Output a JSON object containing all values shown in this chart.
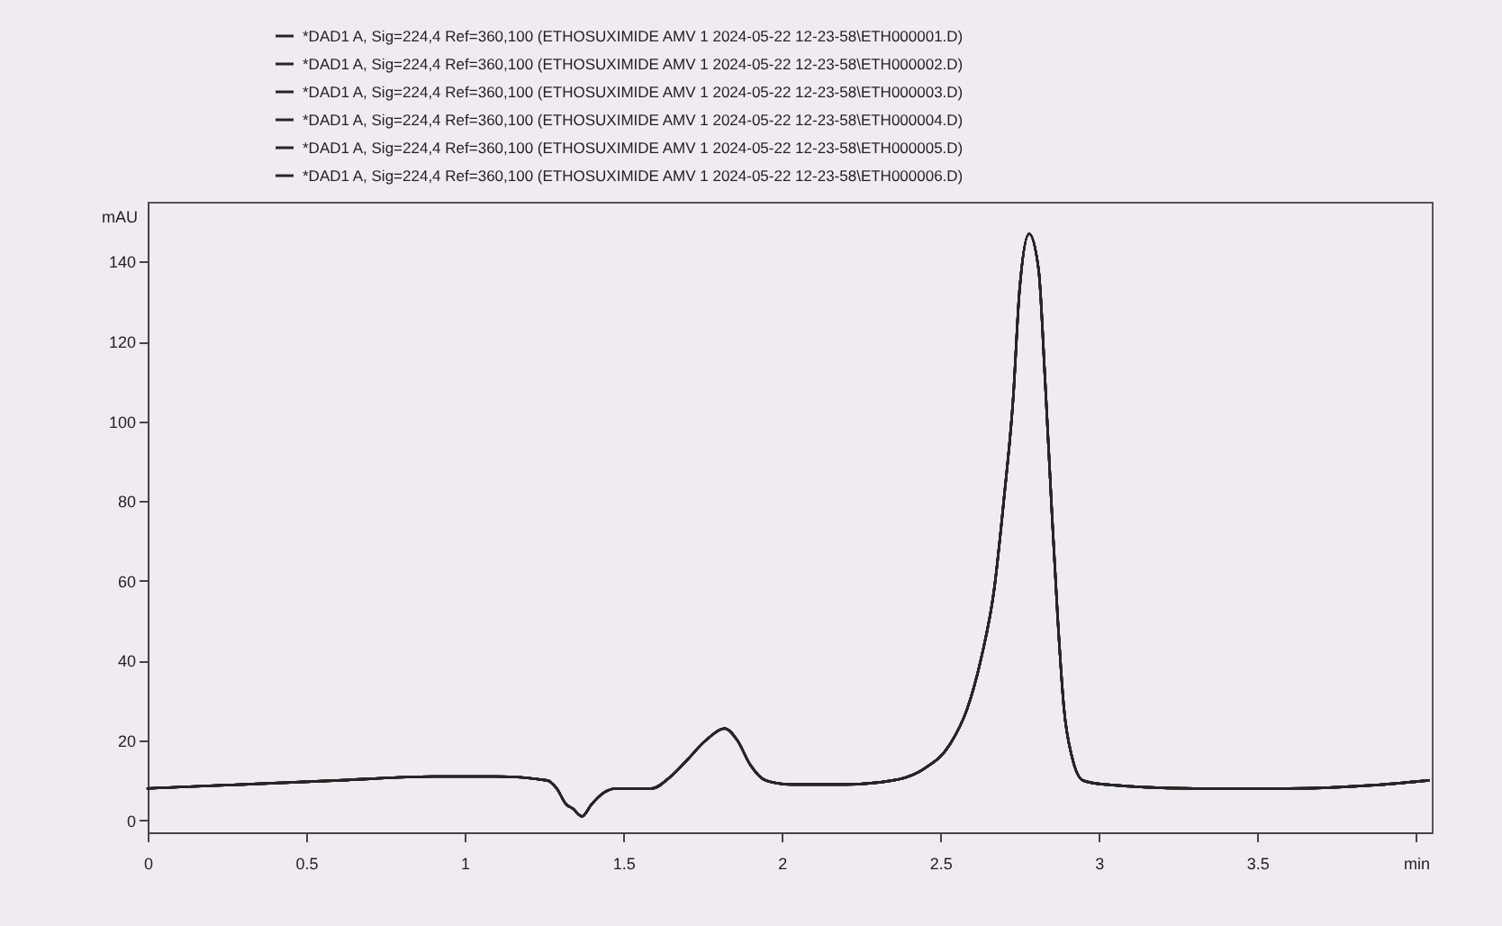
{
  "chart_data": {
    "type": "line",
    "ylabel": "mAU",
    "x": [
      0,
      0.3,
      0.6,
      0.9,
      1.1,
      1.26,
      1.29,
      1.32,
      1.34,
      1.37,
      1.4,
      1.44,
      1.48,
      1.59,
      1.65,
      1.7,
      1.76,
      1.82,
      1.86,
      1.9,
      1.95,
      2.03,
      2.2,
      2.35,
      2.45,
      2.53,
      2.585,
      2.63,
      2.67,
      2.7,
      2.73,
      2.75,
      2.78,
      2.81,
      2.83,
      2.85,
      2.87,
      2.89,
      2.915,
      2.95,
      3.02,
      3.3,
      3.6,
      3.9,
      4.04
    ],
    "series": [
      {
        "name": "*DAD1 A, Sig=224,4 Ref=360,100 (ETHOSUXIMIDE AMV 1 2024-05-22 12-23-58\\ETH000001.D)",
        "color": "#262626",
        "values": [
          8,
          9,
          10,
          11,
          11,
          10,
          8,
          4,
          3,
          1,
          4,
          7,
          8,
          8,
          11,
          15,
          20,
          23,
          20,
          14,
          10,
          9,
          9,
          10,
          13,
          19,
          28,
          41,
          58,
          80,
          106,
          133,
          147,
          138,
          111,
          80,
          51,
          28,
          16,
          10,
          9,
          8,
          8,
          9,
          10
        ]
      },
      {
        "name": "*DAD1 A, Sig=224,4 Ref=360,100 (ETHOSUXIMIDE AMV 1 2024-05-22 12-23-58\\ETH000002.D)",
        "color": "#262626",
        "values": [
          8,
          9,
          10,
          11,
          11,
          10,
          8,
          4,
          3,
          1,
          4,
          7,
          8,
          8,
          11,
          15,
          20,
          23,
          20,
          14,
          10,
          9,
          9,
          10,
          13,
          19,
          28,
          41,
          58,
          80,
          106,
          133,
          147,
          138,
          111,
          80,
          51,
          28,
          16,
          10,
          9,
          8,
          8,
          9,
          10
        ]
      },
      {
        "name": "*DAD1 A, Sig=224,4 Ref=360,100 (ETHOSUXIMIDE AMV 1 2024-05-22 12-23-58\\ETH000003.D)",
        "color": "#262626",
        "values": [
          8,
          9,
          10,
          11,
          11,
          10,
          8,
          4,
          3,
          1,
          4,
          7,
          8,
          8,
          11,
          15,
          20,
          23,
          20,
          14,
          10,
          9,
          9,
          10,
          13,
          19,
          28,
          41,
          58,
          80,
          106,
          133,
          147,
          138,
          111,
          80,
          51,
          28,
          16,
          10,
          9,
          8,
          8,
          9,
          10
        ]
      },
      {
        "name": "*DAD1 A, Sig=224,4 Ref=360,100 (ETHOSUXIMIDE AMV 1 2024-05-22 12-23-58\\ETH000004.D)",
        "color": "#262626",
        "values": [
          8,
          9,
          10,
          11,
          11,
          10,
          8,
          4,
          3,
          1,
          4,
          7,
          8,
          8,
          11,
          15,
          20,
          23,
          20,
          14,
          10,
          9,
          9,
          10,
          13,
          19,
          28,
          41,
          58,
          80,
          106,
          133,
          147,
          138,
          111,
          80,
          51,
          28,
          16,
          10,
          9,
          8,
          8,
          9,
          10
        ]
      },
      {
        "name": "*DAD1 A, Sig=224,4 Ref=360,100 (ETHOSUXIMIDE AMV 1 2024-05-22 12-23-58\\ETH000005.D)",
        "color": "#262626",
        "values": [
          8,
          9,
          10,
          11,
          11,
          10,
          8,
          4,
          3,
          1,
          4,
          7,
          8,
          8,
          11,
          15,
          20,
          23,
          20,
          14,
          10,
          9,
          9,
          10,
          13,
          19,
          28,
          41,
          58,
          80,
          106,
          133,
          147,
          138,
          111,
          80,
          51,
          28,
          16,
          10,
          9,
          8,
          8,
          9,
          10
        ]
      },
      {
        "name": "*DAD1 A, Sig=224,4 Ref=360,100 (ETHOSUXIMIDE AMV 1 2024-05-22 12-23-58\\ETH000006.D)",
        "color": "#262626",
        "values": [
          8,
          9,
          10,
          11,
          11,
          10,
          8,
          4,
          3,
          1,
          4,
          7,
          8,
          8,
          11,
          15,
          20,
          23,
          20,
          14,
          10,
          9,
          9,
          10,
          13,
          19,
          28,
          41,
          58,
          80,
          106,
          133,
          147,
          138,
          111,
          80,
          51,
          28,
          16,
          10,
          9,
          8,
          8,
          9,
          10
        ]
      }
    ],
    "xlim": [
      0,
      4.05
    ],
    "xticks": [
      0,
      0.5,
      1,
      1.5,
      2,
      2.5,
      3,
      3.5,
      {
        "value": 4,
        "label": "min"
      }
    ],
    "ylim": [
      -3,
      155
    ],
    "yticks": [
      0,
      20,
      40,
      60,
      80,
      100,
      120,
      140
    ],
    "grid": false,
    "legend": "top"
  }
}
